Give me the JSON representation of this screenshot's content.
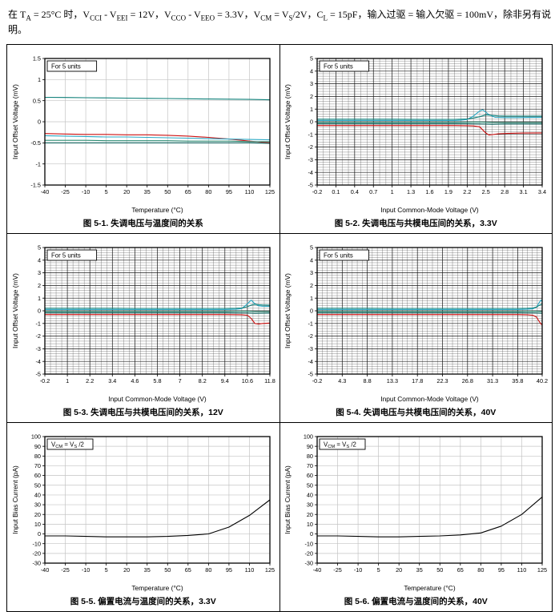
{
  "header": {
    "text": "在 T_{A} = 25°C 时，V_{CCI} - V_{EEI} = 12V，V_{CCO} - V_{EEO} = 3.3V，V_{CM} = V_{S}/2V，C_{L} = 15pF，输入过驱 = 输入欠驱 = 100mV，除非另有说明。"
  },
  "chart_data": [
    {
      "type": "line",
      "caption": "图 5-1. 失调电压与温度间的关系",
      "legend": "For 5 units",
      "xlabel": "Temperature (°C)",
      "ylabel": "Input Offset Voltage (mV)",
      "xlim": [
        -40,
        125
      ],
      "ylim": [
        -1.5,
        1.5
      ],
      "xticks": [
        -40,
        -25,
        -10,
        5,
        20,
        35,
        50,
        65,
        80,
        95,
        110,
        125
      ],
      "yticks": [
        -1.5,
        -1,
        -0.5,
        0,
        0.5,
        1,
        1.5
      ],
      "grid": "light",
      "xminor": 0,
      "yminor": 0,
      "series": [
        {
          "color": "#0e7f78",
          "x": [
            -40,
            -25,
            -10,
            5,
            20,
            35,
            50,
            65,
            80,
            95,
            110,
            125
          ],
          "y": [
            0.58,
            0.575,
            0.57,
            0.565,
            0.56,
            0.555,
            0.55,
            0.545,
            0.54,
            0.535,
            0.53,
            0.52
          ]
        },
        {
          "color": "#cc1111",
          "x": [
            -40,
            -25,
            -10,
            5,
            20,
            35,
            50,
            65,
            80,
            95,
            110,
            125
          ],
          "y": [
            -0.28,
            -0.29,
            -0.3,
            -0.3,
            -0.31,
            -0.31,
            -0.32,
            -0.34,
            -0.37,
            -0.41,
            -0.46,
            -0.5
          ]
        },
        {
          "color": "#2aa8c4",
          "x": [
            -40,
            -25,
            -10,
            5,
            20,
            35,
            50,
            65,
            80,
            95,
            110,
            125
          ],
          "y": [
            -0.33,
            -0.34,
            -0.35,
            -0.36,
            -0.36,
            -0.37,
            -0.38,
            -0.39,
            -0.4,
            -0.41,
            -0.42,
            -0.43
          ]
        },
        {
          "color": "#2d8c74",
          "x": [
            -40,
            -25,
            -10,
            5,
            20,
            35,
            50,
            65,
            80,
            95,
            110,
            125
          ],
          "y": [
            -0.44,
            -0.44,
            -0.44,
            -0.45,
            -0.45,
            -0.45,
            -0.45,
            -0.46,
            -0.46,
            -0.46,
            -0.47,
            -0.47
          ]
        },
        {
          "color": "#0b5f5a",
          "x": [
            -40,
            -25,
            -10,
            5,
            20,
            35,
            50,
            65,
            80,
            95,
            110,
            125
          ],
          "y": [
            -0.5,
            -0.5,
            -0.5,
            -0.5,
            -0.5,
            -0.5,
            -0.5,
            -0.5,
            -0.5,
            -0.5,
            -0.5,
            -0.51
          ]
        }
      ]
    },
    {
      "type": "line",
      "caption": "图 5-2. 失调电压与共模电压间的关系，3.3V",
      "legend": "For 5 units",
      "xlabel": "Input Common-Mode Voltage (V)",
      "ylabel": "Input Offset Voltage (mV)",
      "xlim": [
        -0.2,
        3.4
      ],
      "ylim": [
        -5,
        5
      ],
      "xticks": [
        -0.2,
        0.1,
        0.4,
        0.7,
        1,
        1.3,
        1.6,
        1.9,
        2.2,
        2.5,
        2.8,
        3.1,
        3.4
      ],
      "yticks": [
        -5,
        -4,
        -3,
        -2,
        -1,
        0,
        1,
        2,
        3,
        4,
        5
      ],
      "grid": "dense",
      "xminor": 3,
      "yminor": 5,
      "series": [
        {
          "color": "#2aa8c4",
          "x": [
            -0.2,
            0.5,
            1.0,
            1.5,
            2.0,
            2.1,
            2.2,
            2.3,
            2.4,
            2.45,
            2.55,
            2.65,
            2.8,
            3.0,
            3.2,
            3.4
          ],
          "y": [
            0.1,
            0.1,
            0.1,
            0.1,
            0.1,
            0.12,
            0.18,
            0.45,
            0.85,
            0.95,
            0.55,
            0.35,
            0.33,
            0.33,
            0.34,
            0.35
          ]
        },
        {
          "color": "#0e7f78",
          "x": [
            -0.2,
            0.5,
            1.0,
            1.5,
            2.0,
            2.1,
            2.2,
            2.3,
            2.4,
            2.5,
            2.6,
            2.7,
            2.8,
            3.0,
            3.2,
            3.4
          ],
          "y": [
            0.2,
            0.2,
            0.2,
            0.19,
            0.19,
            0.2,
            0.22,
            0.3,
            0.4,
            0.55,
            0.5,
            0.46,
            0.45,
            0.45,
            0.45,
            0.45
          ]
        },
        {
          "color": "#2d8c74",
          "x": [
            -0.2,
            0.5,
            1.0,
            1.5,
            2.0,
            2.2,
            2.4,
            2.6,
            2.8,
            3.0,
            3.2,
            3.4
          ],
          "y": [
            -0.05,
            -0.05,
            -0.05,
            -0.05,
            -0.05,
            -0.04,
            -0.02,
            -0.06,
            -0.07,
            -0.07,
            -0.07,
            -0.07
          ]
        },
        {
          "color": "#0b5f5a",
          "x": [
            -0.2,
            0.5,
            1.0,
            1.5,
            2.0,
            2.2,
            2.4,
            2.6,
            2.8,
            3.0,
            3.2,
            3.4
          ],
          "y": [
            -0.15,
            -0.15,
            -0.15,
            -0.15,
            -0.15,
            -0.15,
            -0.17,
            -0.2,
            -0.18,
            -0.18,
            -0.18,
            -0.18
          ]
        },
        {
          "color": "#cc1111",
          "x": [
            -0.2,
            0.5,
            1.0,
            1.5,
            2.0,
            2.2,
            2.3,
            2.4,
            2.5,
            2.55,
            2.7,
            2.9,
            3.1,
            3.4
          ],
          "y": [
            -0.3,
            -0.3,
            -0.3,
            -0.3,
            -0.3,
            -0.31,
            -0.33,
            -0.4,
            -0.9,
            -1.05,
            -0.95,
            -0.91,
            -0.89,
            -0.88
          ]
        }
      ]
    },
    {
      "type": "line",
      "caption": "图 5-3. 失调电压与共模电压间的关系，12V",
      "legend": "For 5 units",
      "xlabel": "Input Common-Mode Voltage (V)",
      "ylabel": "Input Offset Voltage (mV)",
      "xlim": [
        -0.2,
        11.8
      ],
      "ylim": [
        -5,
        5
      ],
      "xticks": [
        -0.2,
        1,
        2.2,
        3.4,
        4.6,
        5.8,
        7,
        8.2,
        9.4,
        10.6,
        11.8
      ],
      "yticks": [
        -5,
        -4,
        -3,
        -2,
        -1,
        0,
        1,
        2,
        3,
        4,
        5
      ],
      "grid": "dense",
      "xminor": 4,
      "yminor": 5,
      "series": [
        {
          "color": "#2aa8c4",
          "x": [
            -0.2,
            1,
            2.2,
            3.4,
            4.6,
            5.8,
            7,
            8.2,
            9.4,
            10,
            10.3,
            10.6,
            10.8,
            11,
            11.2,
            11.4,
            11.8
          ],
          "y": [
            0.1,
            0.1,
            0.1,
            0.1,
            0.1,
            0.1,
            0.1,
            0.1,
            0.1,
            0.12,
            0.18,
            0.55,
            0.85,
            0.55,
            0.4,
            0.36,
            0.35
          ]
        },
        {
          "color": "#0e7f78",
          "x": [
            -0.2,
            1,
            2.2,
            3.4,
            4.6,
            5.8,
            7,
            8.2,
            9.4,
            10,
            10.3,
            10.6,
            10.8,
            11,
            11.2,
            11.4,
            11.8
          ],
          "y": [
            0.2,
            0.2,
            0.2,
            0.2,
            0.19,
            0.19,
            0.19,
            0.19,
            0.19,
            0.2,
            0.22,
            0.32,
            0.45,
            0.52,
            0.48,
            0.46,
            0.45
          ]
        },
        {
          "color": "#2d8c74",
          "x": [
            -0.2,
            1,
            2.2,
            3.4,
            4.6,
            5.8,
            7,
            8.2,
            9.4,
            10.6,
            11,
            11.8
          ],
          "y": [
            -0.05,
            -0.05,
            -0.05,
            -0.05,
            -0.05,
            -0.05,
            -0.05,
            -0.05,
            -0.05,
            -0.03,
            -0.06,
            -0.07
          ]
        },
        {
          "color": "#0b5f5a",
          "x": [
            -0.2,
            1,
            2.2,
            3.4,
            4.6,
            5.8,
            7,
            8.2,
            9.4,
            10.6,
            11,
            11.8
          ],
          "y": [
            -0.15,
            -0.15,
            -0.15,
            -0.15,
            -0.15,
            -0.15,
            -0.15,
            -0.15,
            -0.15,
            -0.17,
            -0.2,
            -0.18
          ]
        },
        {
          "color": "#cc1111",
          "x": [
            -0.2,
            1,
            2.2,
            3.4,
            4.6,
            5.8,
            7,
            8.2,
            9.4,
            10.3,
            10.6,
            10.8,
            11,
            11.2,
            11.4,
            11.8
          ],
          "y": [
            -0.3,
            -0.3,
            -0.3,
            -0.3,
            -0.3,
            -0.3,
            -0.3,
            -0.3,
            -0.3,
            -0.31,
            -0.35,
            -0.6,
            -1.0,
            -1.05,
            -1.0,
            -0.97
          ]
        }
      ]
    },
    {
      "type": "line",
      "caption": "图 5-4. 失调电压与共模电压间的关系，40V",
      "legend": "For 5 units",
      "xlabel": "Input Common-Mode Voltage (V)",
      "ylabel": "Input Offset Voltage (mV)",
      "xlim": [
        -0.2,
        40.2
      ],
      "ylim": [
        -5,
        5
      ],
      "xticks": [
        -0.2,
        4.3,
        8.8,
        13.3,
        17.8,
        22.3,
        26.8,
        31.3,
        35.8,
        40.2
      ],
      "yticks": [
        -5,
        -4,
        -3,
        -2,
        -1,
        0,
        1,
        2,
        3,
        4,
        5
      ],
      "grid": "dense",
      "xminor": 5,
      "yminor": 5,
      "series": [
        {
          "color": "#2aa8c4",
          "x": [
            -0.2,
            4.3,
            8.8,
            13.3,
            17.8,
            22.3,
            26.8,
            31.3,
            35.8,
            37.5,
            38.5,
            39.2,
            39.6,
            40,
            40.2
          ],
          "y": [
            0.1,
            0.1,
            0.1,
            0.1,
            0.1,
            0.1,
            0.1,
            0.1,
            0.1,
            0.12,
            0.15,
            0.3,
            0.6,
            0.85,
            0.7
          ]
        },
        {
          "color": "#0e7f78",
          "x": [
            -0.2,
            4.3,
            8.8,
            13.3,
            17.8,
            22.3,
            26.8,
            31.3,
            35.8,
            37.5,
            38.5,
            39.2,
            39.6,
            40,
            40.2
          ],
          "y": [
            0.2,
            0.2,
            0.2,
            0.19,
            0.19,
            0.19,
            0.19,
            0.19,
            0.19,
            0.2,
            0.22,
            0.3,
            0.42,
            0.5,
            0.55
          ]
        },
        {
          "color": "#2d8c74",
          "x": [
            -0.2,
            4.3,
            8.8,
            13.3,
            17.8,
            22.3,
            26.8,
            31.3,
            35.8,
            39,
            40.2
          ],
          "y": [
            -0.05,
            -0.05,
            -0.05,
            -0.05,
            -0.05,
            -0.05,
            -0.05,
            -0.05,
            -0.05,
            -0.04,
            -0.07
          ]
        },
        {
          "color": "#0b5f5a",
          "x": [
            -0.2,
            4.3,
            8.8,
            13.3,
            17.8,
            22.3,
            26.8,
            31.3,
            35.8,
            39,
            40.2
          ],
          "y": [
            -0.15,
            -0.15,
            -0.15,
            -0.15,
            -0.15,
            -0.15,
            -0.15,
            -0.15,
            -0.15,
            -0.17,
            -0.2
          ]
        },
        {
          "color": "#cc1111",
          "x": [
            -0.2,
            4.3,
            8.8,
            13.3,
            17.8,
            22.3,
            26.8,
            31.3,
            35.8,
            37.5,
            38.5,
            39.2,
            39.6,
            40,
            40.2
          ],
          "y": [
            -0.3,
            -0.3,
            -0.3,
            -0.3,
            -0.3,
            -0.3,
            -0.3,
            -0.3,
            -0.3,
            -0.31,
            -0.35,
            -0.5,
            -0.8,
            -1.05,
            -1.1
          ]
        }
      ]
    },
    {
      "type": "line",
      "caption": "图 5-5. 偏置电流与温度间的关系，3.3V",
      "legend": "V_{CM} = V_{S}/2",
      "xlabel": "Temperature (°C)",
      "ylabel": "Input Bias Current (pA)",
      "xlim": [
        -40,
        125
      ],
      "ylim": [
        -30,
        100
      ],
      "xticks": [
        -40,
        -25,
        -10,
        5,
        20,
        35,
        50,
        65,
        80,
        95,
        110,
        125
      ],
      "yticks": [
        -30,
        -20,
        -10,
        0,
        10,
        20,
        30,
        40,
        50,
        60,
        70,
        80,
        90,
        100
      ],
      "grid": "light",
      "xminor": 0,
      "yminor": 0,
      "series": [
        {
          "color": "#000000",
          "x": [
            -40,
            -25,
            -10,
            5,
            20,
            35,
            50,
            65,
            80,
            95,
            110,
            125
          ],
          "y": [
            -2,
            -2,
            -2.5,
            -3,
            -3,
            -3,
            -2.5,
            -1.5,
            0,
            7,
            19,
            35
          ]
        }
      ]
    },
    {
      "type": "line",
      "caption": "图 5-6. 偏置电流与温度间的关系，40V",
      "legend": "V_{CM} = V_{S}/2",
      "xlabel": "Temperature (°C)",
      "ylabel": "Input Bias Current (pA)",
      "xlim": [
        -40,
        125
      ],
      "ylim": [
        -30,
        100
      ],
      "xticks": [
        -40,
        -25,
        -10,
        5,
        20,
        35,
        50,
        65,
        80,
        95,
        110,
        125
      ],
      "yticks": [
        -30,
        -20,
        -10,
        0,
        10,
        20,
        30,
        40,
        50,
        60,
        70,
        80,
        90,
        100
      ],
      "grid": "light",
      "xminor": 0,
      "yminor": 0,
      "series": [
        {
          "color": "#000000",
          "x": [
            -40,
            -25,
            -10,
            5,
            20,
            35,
            50,
            65,
            80,
            95,
            110,
            125
          ],
          "y": [
            -2,
            -2,
            -2.5,
            -3,
            -3,
            -2.5,
            -2,
            -1,
            1,
            8,
            20,
            38
          ]
        }
      ]
    }
  ]
}
